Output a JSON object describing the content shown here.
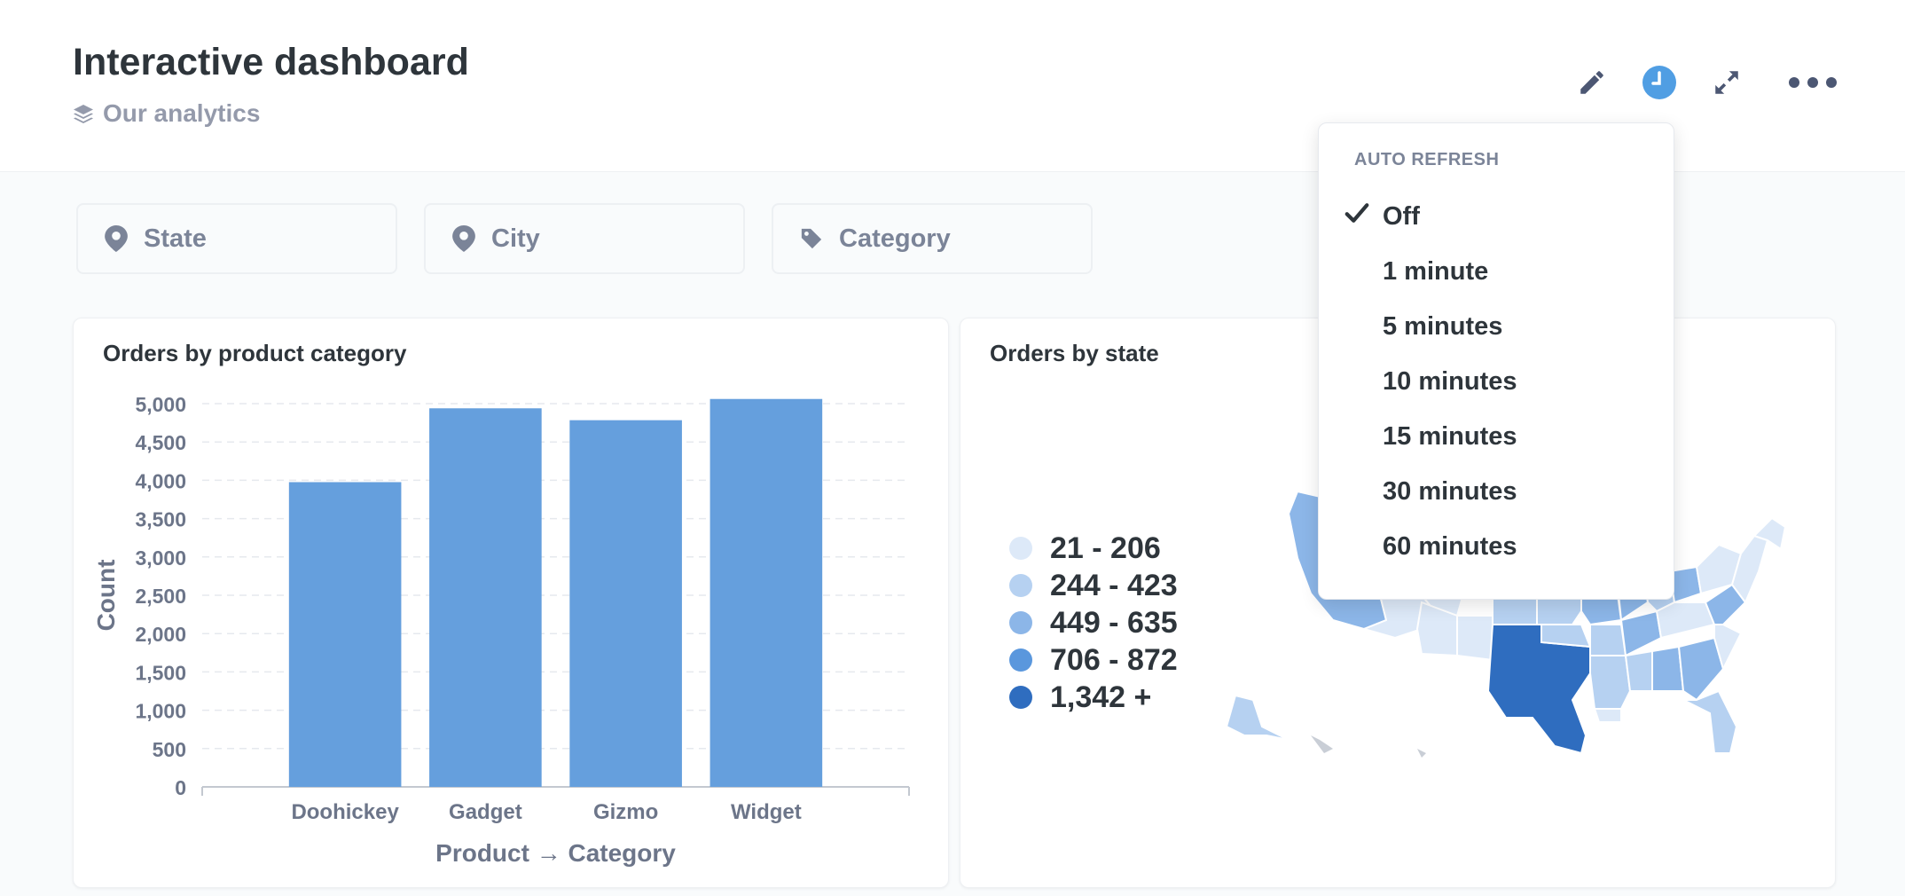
{
  "header": {
    "title": "Interactive dashboard",
    "collection": "Our analytics",
    "icons": [
      "pencil-icon",
      "clock-icon",
      "expand-icon",
      "more-icon"
    ]
  },
  "filters": [
    {
      "label": "State",
      "icon": "location-pin-icon"
    },
    {
      "label": "City",
      "icon": "location-pin-icon"
    },
    {
      "label": "Category",
      "icon": "tag-icon"
    }
  ],
  "bar_card": {
    "title": "Orders by product category"
  },
  "map_card": {
    "title": "Orders by state"
  },
  "chart_data": {
    "type": "bar",
    "categories": [
      "Doohickey",
      "Gadget",
      "Gizmo",
      "Widget"
    ],
    "values": [
      3976,
      4939,
      4784,
      5061
    ],
    "title": "Orders by product category",
    "xlabel": "Product → Category",
    "ylabel": "Count",
    "ylim": [
      0,
      5000
    ],
    "yticks": [
      "0",
      "500",
      "1,000",
      "1,500",
      "2,000",
      "2,500",
      "3,000",
      "3,500",
      "4,000",
      "4,500",
      "5,000"
    ],
    "color": "#659fdd",
    "grid": true
  },
  "map_legend": [
    {
      "label": "21 - 206",
      "color": "#dde9f8"
    },
    {
      "label": "244 - 423",
      "color": "#b6d1f1"
    },
    {
      "label": "449 - 635",
      "color": "#8cb6e8"
    },
    {
      "label": "706 - 872",
      "color": "#5a97dd"
    },
    {
      "label": "1,342 +",
      "color": "#2f6dbf"
    }
  ],
  "auto_refresh": {
    "heading": "AUTO REFRESH",
    "options": [
      "Off",
      "1 minute",
      "5 minutes",
      "10 minutes",
      "15 minutes",
      "30 minutes",
      "60 minutes"
    ],
    "selected": "Off"
  }
}
